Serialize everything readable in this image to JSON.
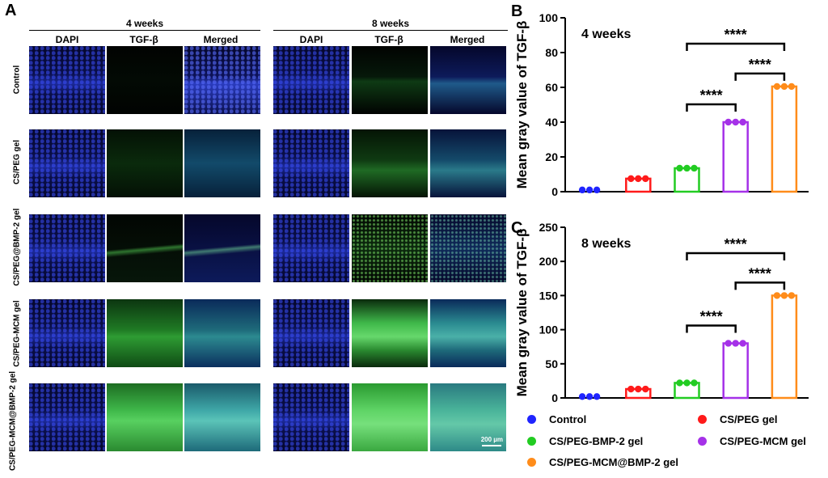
{
  "panel_a": {
    "letter": "A",
    "groups": [
      {
        "title": "4 weeks",
        "columns": [
          "DAPI",
          "TGF-β",
          "Merged"
        ]
      },
      {
        "title": "8 weeks",
        "columns": [
          "DAPI",
          "TGF-β",
          "Merged"
        ]
      }
    ],
    "rows": [
      "Control",
      "CS/PEG gel",
      "CS/PEG@BMP-2 gel",
      "CS/PEG-MCM gel",
      "CS/PEG-MCM@BMP-2 gel"
    ],
    "scale_bar": "200 µm"
  },
  "chart_data": [
    {
      "panel": "B",
      "type": "bar",
      "title": "4 weeks",
      "ylabel": "Mean gray value of TGF-β",
      "ylim": [
        0,
        100
      ],
      "yticks": [
        "0",
        "20",
        "40",
        "60",
        "80",
        "100"
      ],
      "categories": [
        "Control",
        "CS/PEG gel",
        "CS/PEG-BMP-2 gel",
        "CS/PEG-MCM gel",
        "CS/PEG-MCM@BMP-2 gel"
      ],
      "values": [
        1,
        7.5,
        13.5,
        40,
        60.5
      ],
      "colors": [
        "#1f24ff",
        "#ff1a1a",
        "#22cc22",
        "#a531e8",
        "#ff8c1a"
      ],
      "significance": [
        {
          "from": 2,
          "to": 3,
          "label": "****"
        },
        {
          "from": 3,
          "to": 4,
          "label": "****"
        },
        {
          "from": 2,
          "to": 4,
          "label": "****"
        }
      ]
    },
    {
      "panel": "C",
      "type": "bar",
      "title": "8 weeks",
      "ylabel": "Mean gray value of TGF-β",
      "ylim": [
        0,
        250
      ],
      "yticks": [
        "0",
        "50",
        "100",
        "150",
        "200",
        "250"
      ],
      "categories": [
        "Control",
        "CS/PEG gel",
        "CS/PEG-BMP-2 gel",
        "CS/PEG-MCM gel",
        "CS/PEG-MCM@BMP-2 gel"
      ],
      "values": [
        2,
        13,
        22,
        80,
        150
      ],
      "colors": [
        "#1f24ff",
        "#ff1a1a",
        "#22cc22",
        "#a531e8",
        "#ff8c1a"
      ],
      "significance": [
        {
          "from": 2,
          "to": 3,
          "label": "****"
        },
        {
          "from": 3,
          "to": 4,
          "label": "****"
        },
        {
          "from": 2,
          "to": 4,
          "label": "****"
        }
      ]
    }
  ],
  "legend": [
    {
      "label": "Control",
      "color": "#1f24ff"
    },
    {
      "label": "CS/PEG gel",
      "color": "#ff1a1a"
    },
    {
      "label": "CS/PEG-BMP-2 gel",
      "color": "#22cc22"
    },
    {
      "label": "CS/PEG-MCM gel",
      "color": "#a531e8"
    },
    {
      "label": "CS/PEG-MCM@BMP-2 gel",
      "color": "#ff8c1a"
    }
  ]
}
